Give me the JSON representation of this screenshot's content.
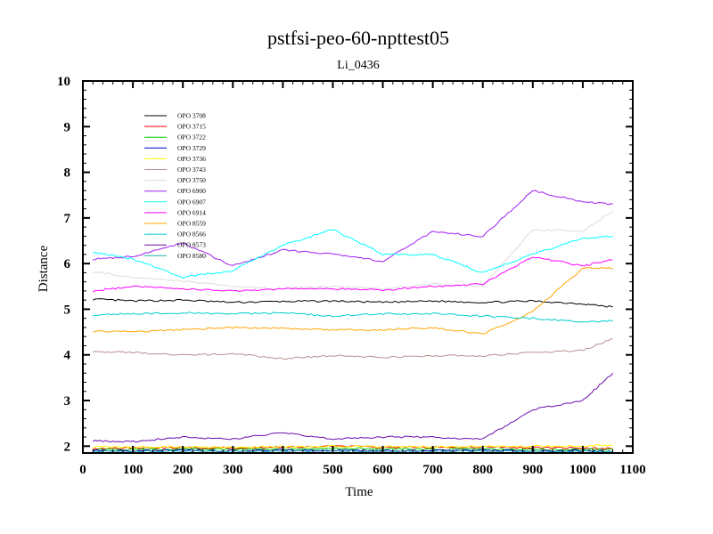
{
  "chart_data": {
    "type": "line",
    "title": "pstfsi-peo-60-npttest05",
    "subtitle": "Li_0436",
    "xlabel": "Time",
    "ylabel": "Distance",
    "xlim": [
      0,
      1100
    ],
    "ylim": [
      1.85,
      10
    ],
    "x_ticks": [
      0,
      100,
      200,
      300,
      400,
      500,
      600,
      700,
      800,
      900,
      1000,
      1100
    ],
    "y_ticks": [
      2,
      3,
      4,
      5,
      6,
      7,
      8,
      9,
      10
    ],
    "legend_position": "top-left",
    "grid": false,
    "series": [
      {
        "name": "OPO 3708",
        "color": "#000000",
        "x": [
          20,
          100,
          200,
          300,
          400,
          500,
          600,
          700,
          800,
          900,
          1000,
          1060
        ],
        "y": [
          5.22,
          5.18,
          5.2,
          5.15,
          5.17,
          5.18,
          5.15,
          5.18,
          5.15,
          5.18,
          5.12,
          5.05
        ]
      },
      {
        "name": "OPO 3715",
        "color": "#ff0000",
        "x": [
          20,
          100,
          200,
          300,
          400,
          500,
          600,
          700,
          800,
          900,
          1000,
          1060
        ],
        "y": [
          1.95,
          1.96,
          1.97,
          1.96,
          1.98,
          2.0,
          1.98,
          1.97,
          1.98,
          1.97,
          1.96,
          1.95
        ]
      },
      {
        "name": "OPO 3722",
        "color": "#00cc00",
        "x": [
          20,
          100,
          200,
          300,
          400,
          500,
          600,
          700,
          800,
          900,
          1000,
          1060
        ],
        "y": [
          1.93,
          1.93,
          1.94,
          1.93,
          1.94,
          1.95,
          1.94,
          1.93,
          1.94,
          1.93,
          1.93,
          1.93
        ]
      },
      {
        "name": "OPO 3729",
        "color": "#0000cc",
        "x": [
          20,
          100,
          200,
          300,
          400,
          500,
          600,
          700,
          800,
          900,
          1000,
          1060
        ],
        "y": [
          1.9,
          1.9,
          1.91,
          1.9,
          1.91,
          1.91,
          1.9,
          1.9,
          1.91,
          1.9,
          1.9,
          1.89
        ]
      },
      {
        "name": "OPO 3736",
        "color": "#ffff00",
        "x": [
          20,
          100,
          200,
          300,
          400,
          500,
          600,
          700,
          800,
          900,
          1000,
          1060
        ],
        "y": [
          1.98,
          1.98,
          1.99,
          1.98,
          1.99,
          2.0,
          1.99,
          1.99,
          2.0,
          2.0,
          2.01,
          2.02
        ]
      },
      {
        "name": "OPO 3743",
        "color": "#bc8f8f",
        "x": [
          20,
          100,
          200,
          300,
          400,
          500,
          600,
          700,
          800,
          900,
          1000,
          1060
        ],
        "y": [
          4.08,
          4.05,
          4.0,
          4.02,
          3.92,
          3.98,
          3.95,
          3.98,
          3.98,
          4.05,
          4.1,
          4.35
        ]
      },
      {
        "name": "OPO 3750",
        "color": "#dcdcdc",
        "x": [
          20,
          100,
          200,
          300,
          400,
          500,
          600,
          700,
          800,
          900,
          1000,
          1060
        ],
        "y": [
          5.82,
          5.7,
          5.62,
          5.5,
          5.45,
          5.5,
          5.45,
          5.55,
          5.5,
          6.75,
          6.7,
          7.15
        ]
      },
      {
        "name": "OPO 6900",
        "color": "#a020f0",
        "x": [
          20,
          100,
          200,
          300,
          400,
          500,
          600,
          700,
          800,
          900,
          1000,
          1060
        ],
        "y": [
          6.1,
          6.15,
          6.45,
          5.95,
          6.3,
          6.2,
          6.05,
          6.7,
          6.6,
          7.6,
          7.35,
          7.3
        ]
      },
      {
        "name": "OPO 6907",
        "color": "#00ffff",
        "x": [
          20,
          100,
          200,
          300,
          400,
          500,
          600,
          700,
          800,
          900,
          1000,
          1060
        ],
        "y": [
          6.25,
          6.1,
          5.7,
          5.85,
          6.4,
          6.75,
          6.2,
          6.2,
          5.8,
          6.2,
          6.55,
          6.6
        ]
      },
      {
        "name": "OPO 6914",
        "color": "#ff00ff",
        "x": [
          20,
          100,
          200,
          300,
          400,
          500,
          600,
          700,
          800,
          900,
          1000,
          1060
        ],
        "y": [
          5.4,
          5.5,
          5.45,
          5.4,
          5.45,
          5.45,
          5.42,
          5.5,
          5.55,
          6.15,
          5.95,
          6.08
        ]
      },
      {
        "name": "OPO 8559",
        "color": "#ffa500",
        "x": [
          20,
          100,
          200,
          300,
          400,
          500,
          600,
          700,
          800,
          900,
          1000,
          1060
        ],
        "y": [
          4.52,
          4.5,
          4.55,
          4.6,
          4.58,
          4.55,
          4.55,
          4.6,
          4.45,
          4.95,
          5.9,
          5.9
        ]
      },
      {
        "name": "OPO 8566",
        "color": "#00ced1",
        "x": [
          20,
          100,
          200,
          300,
          400,
          500,
          600,
          700,
          800,
          900,
          1000,
          1060
        ],
        "y": [
          4.88,
          4.9,
          4.92,
          4.9,
          4.92,
          4.85,
          4.9,
          4.9,
          4.85,
          4.8,
          4.72,
          4.75
        ]
      },
      {
        "name": "OPO 8573",
        "color": "#6a0dad",
        "x": [
          20,
          100,
          200,
          300,
          400,
          500,
          600,
          700,
          800,
          900,
          1000,
          1060
        ],
        "y": [
          2.12,
          2.1,
          2.2,
          2.15,
          2.3,
          2.15,
          2.2,
          2.2,
          2.15,
          2.8,
          3.0,
          3.6
        ]
      },
      {
        "name": "OPO 8580",
        "color": "#20b2aa",
        "x": [
          20,
          100,
          200,
          300,
          400,
          500,
          600,
          700,
          800,
          900,
          1000,
          1060
        ],
        "y": [
          1.88,
          1.88,
          1.89,
          1.88,
          1.89,
          1.9,
          1.89,
          1.88,
          1.89,
          1.88,
          1.88,
          1.88
        ]
      }
    ]
  }
}
